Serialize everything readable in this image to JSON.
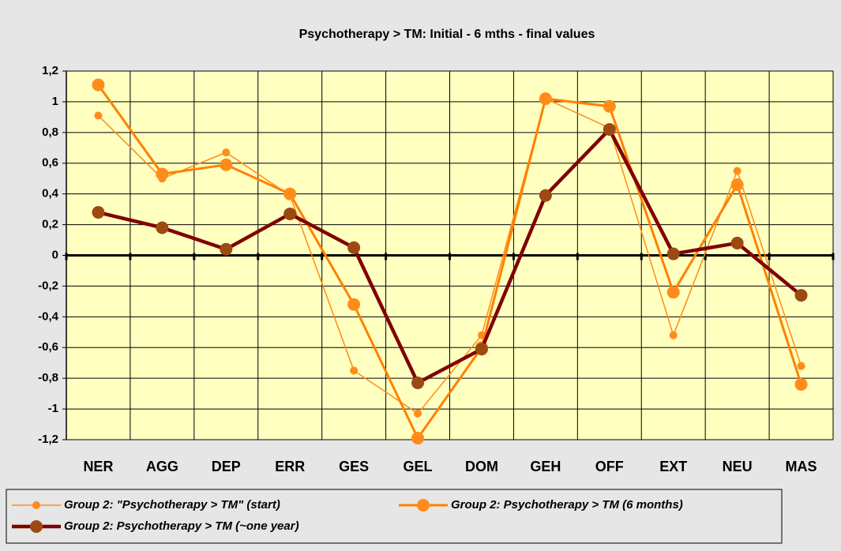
{
  "chart_data": {
    "type": "line",
    "title": "Psychotherapy > TM: Initial - 6 mths - final values",
    "categories": [
      "NER",
      "AGG",
      "DEP",
      "ERR",
      "GES",
      "GEL",
      "DOM",
      "GEH",
      "OFF",
      "EXT",
      "NEU",
      "MAS"
    ],
    "series": [
      {
        "name": "Group 2: \"Psychotherapy > TM\" (start)",
        "color": "#ff8c1a",
        "width": 1.5,
        "marker_size": 5,
        "marker_color": "#ff8c1a",
        "values": [
          0.91,
          0.5,
          0.67,
          0.39,
          -0.75,
          -1.03,
          -0.52,
          1.02,
          0.83,
          -0.52,
          0.55,
          -0.72
        ]
      },
      {
        "name": "Group 2: Psychotherapy > TM (6 months)",
        "color": "#ff8000",
        "width": 3,
        "marker_size": 8,
        "marker_color": "#ff8c1a",
        "values": [
          1.11,
          0.53,
          0.59,
          0.4,
          -0.32,
          -1.19,
          -0.6,
          1.02,
          0.97,
          -0.24,
          0.46,
          -0.84
        ]
      },
      {
        "name": "Group 2: Psychotherapy > TM (~one year)",
        "color": "#800000",
        "width": 4.5,
        "marker_size": 8,
        "marker_color": "#9c4a12",
        "values": [
          0.28,
          0.18,
          0.04,
          0.27,
          0.05,
          -0.83,
          -0.61,
          0.39,
          0.82,
          0.01,
          0.08,
          -0.26
        ]
      }
    ],
    "ylim": [
      -1.2,
      1.2
    ],
    "yticks": [
      {
        "value": 1.2,
        "label": "1,2"
      },
      1,
      {
        "value": 0.8,
        "label": "0,8"
      },
      {
        "value": 0.6,
        "label": "0,6"
      },
      {
        "value": 0.4,
        "label": "0,4"
      },
      {
        "value": 0.2,
        "label": "0,2"
      },
      0,
      {
        "value": -0.2,
        "label": "-0,2"
      },
      {
        "value": -0.4,
        "label": "-0,4"
      },
      {
        "value": -0.6,
        "label": "-0,6"
      },
      {
        "value": -0.8,
        "label": "-0,8"
      },
      -1,
      {
        "value": -1.2,
        "label": "-1,2"
      }
    ],
    "grid": true
  }
}
